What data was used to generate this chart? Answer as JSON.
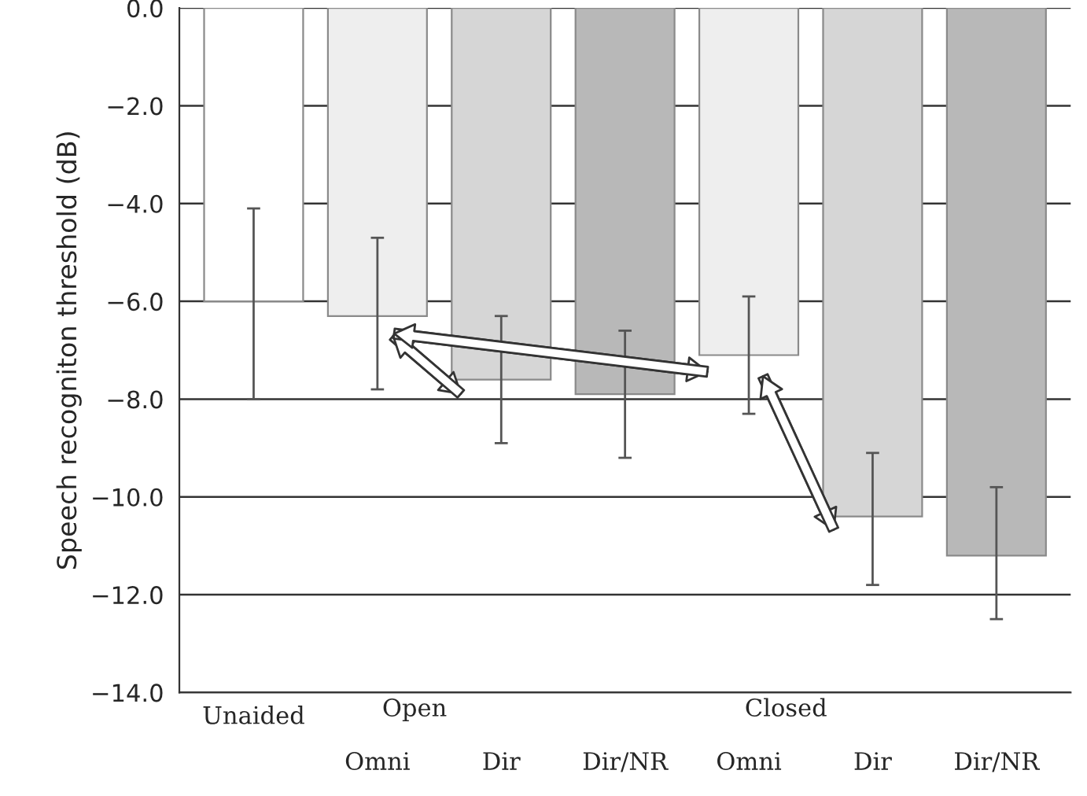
{
  "chart_data": {
    "type": "bar",
    "ylabel": "Speech recogniton threshold (dB)",
    "categories": [
      "Unaided",
      "Omni",
      "Dir",
      "Dir/NR",
      "Omni",
      "Dir",
      "Dir/NR"
    ],
    "values": [
      -6.0,
      -6.3,
      -7.6,
      -7.9,
      -7.1,
      -10.4,
      -11.2
    ],
    "colors": [
      "#ffffff",
      "#eeeeee",
      "#d6d6d6",
      "#b8b8b8",
      "#eeeeee",
      "#d6d6d6",
      "#b8b8b8"
    ],
    "errors": [
      [
        -8.0,
        -4.1
      ],
      [
        -7.8,
        -4.7
      ],
      [
        -8.9,
        -6.3
      ],
      [
        -9.2,
        -6.6
      ],
      [
        -8.3,
        -5.9
      ],
      [
        -11.8,
        -9.1
      ],
      [
        -12.5,
        -9.8
      ]
    ],
    "ylim": [
      -14.0,
      0.0
    ],
    "yticks": [
      {
        "value": 0,
        "label": "0.0"
      },
      {
        "value": -2,
        "label": "−2.0"
      },
      {
        "value": -4,
        "label": "−4.0"
      },
      {
        "value": -6,
        "label": "−6.0"
      },
      {
        "value": -8,
        "label": "−8.0"
      },
      {
        "value": -10,
        "label": "−10.0"
      },
      {
        "value": -12,
        "label": "−12.0"
      },
      {
        "value": -14,
        "label": "−14.0"
      }
    ],
    "grid": "y",
    "annotations": [
      "Open",
      "Closed"
    ]
  }
}
